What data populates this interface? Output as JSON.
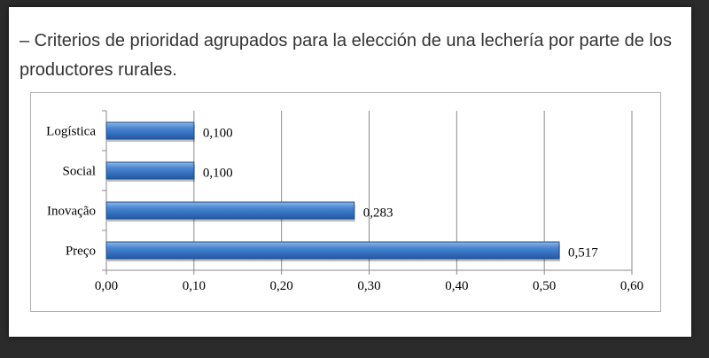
{
  "caption": "– Criterios de prioridad agrupados para la elección de una lechería por parte de los productores rurales.",
  "chart_data": {
    "type": "bar",
    "orientation": "horizontal",
    "categories": [
      "Logística",
      "Social",
      "Inovação",
      "Preço"
    ],
    "values": [
      0.1,
      0.1,
      0.283,
      0.517
    ],
    "value_labels": [
      "0,100",
      "0,100",
      "0,283",
      "0,517"
    ],
    "xlim": [
      0,
      0.6
    ],
    "xticks": [
      "0,00",
      "0,10",
      "0,20",
      "0,30",
      "0,40",
      "0,50",
      "0,60"
    ],
    "grid": true,
    "bar_color": "#3f7fcc",
    "bar_edge_color": "#1f4f8f"
  }
}
